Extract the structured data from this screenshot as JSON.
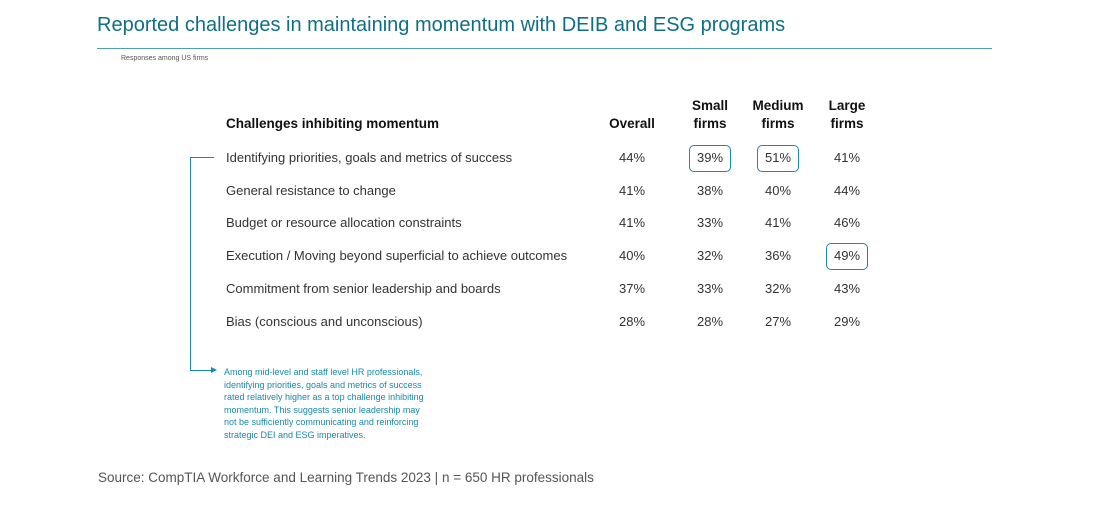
{
  "title": "Reported challenges in maintaining momentum with DEIB and ESG programs",
  "subtitle": "Responses among US firms",
  "table": {
    "columns": [
      {
        "label_lines": [
          "Challenges inhibiting momentum"
        ]
      },
      {
        "label_lines": [
          "Overall"
        ]
      },
      {
        "label_lines": [
          "Small",
          "firms"
        ]
      },
      {
        "label_lines": [
          "Medium",
          "firms"
        ]
      },
      {
        "label_lines": [
          "Large",
          "firms"
        ]
      }
    ],
    "rows": [
      {
        "label": "Identifying priorities, goals and metrics of success",
        "values": [
          "44%",
          "39%",
          "51%",
          "41%"
        ],
        "highlighted": [
          false,
          true,
          true,
          false
        ]
      },
      {
        "label": "General resistance to change",
        "values": [
          "41%",
          "38%",
          "40%",
          "44%"
        ],
        "highlighted": [
          false,
          false,
          false,
          false
        ]
      },
      {
        "label": "Budget or resource allocation constraints",
        "values": [
          "41%",
          "33%",
          "41%",
          "46%"
        ],
        "highlighted": [
          false,
          false,
          false,
          false
        ]
      },
      {
        "label": "Execution / Moving beyond superficial to achieve outcomes",
        "values": [
          "40%",
          "32%",
          "36%",
          "49%"
        ],
        "highlighted": [
          false,
          false,
          false,
          true
        ]
      },
      {
        "label": "Commitment from senior leadership and boards",
        "values": [
          "37%",
          "33%",
          "32%",
          "43%"
        ],
        "highlighted": [
          false,
          false,
          false,
          false
        ]
      },
      {
        "label": "Bias (conscious and unconscious)",
        "values": [
          "28%",
          "28%",
          "27%",
          "29%"
        ],
        "highlighted": [
          false,
          false,
          false,
          false
        ]
      }
    ]
  },
  "note_lines": [
    "Among mid-level and staff level HR professionals,",
    "identifying priorities, goals and metrics of success",
    "rated relatively higher as a top challenge inhibiting",
    "momentum. This suggests senior leadership may",
    "not be sufficiently communicating and reinforcing",
    "strategic DEI and ESG imperatives."
  ],
  "source": "Source: CompTIA Workforce and Learning Trends 2023 | n = 650 HR professionals",
  "colors": {
    "accent": "#168aa8",
    "title": "#0e6f86"
  }
}
